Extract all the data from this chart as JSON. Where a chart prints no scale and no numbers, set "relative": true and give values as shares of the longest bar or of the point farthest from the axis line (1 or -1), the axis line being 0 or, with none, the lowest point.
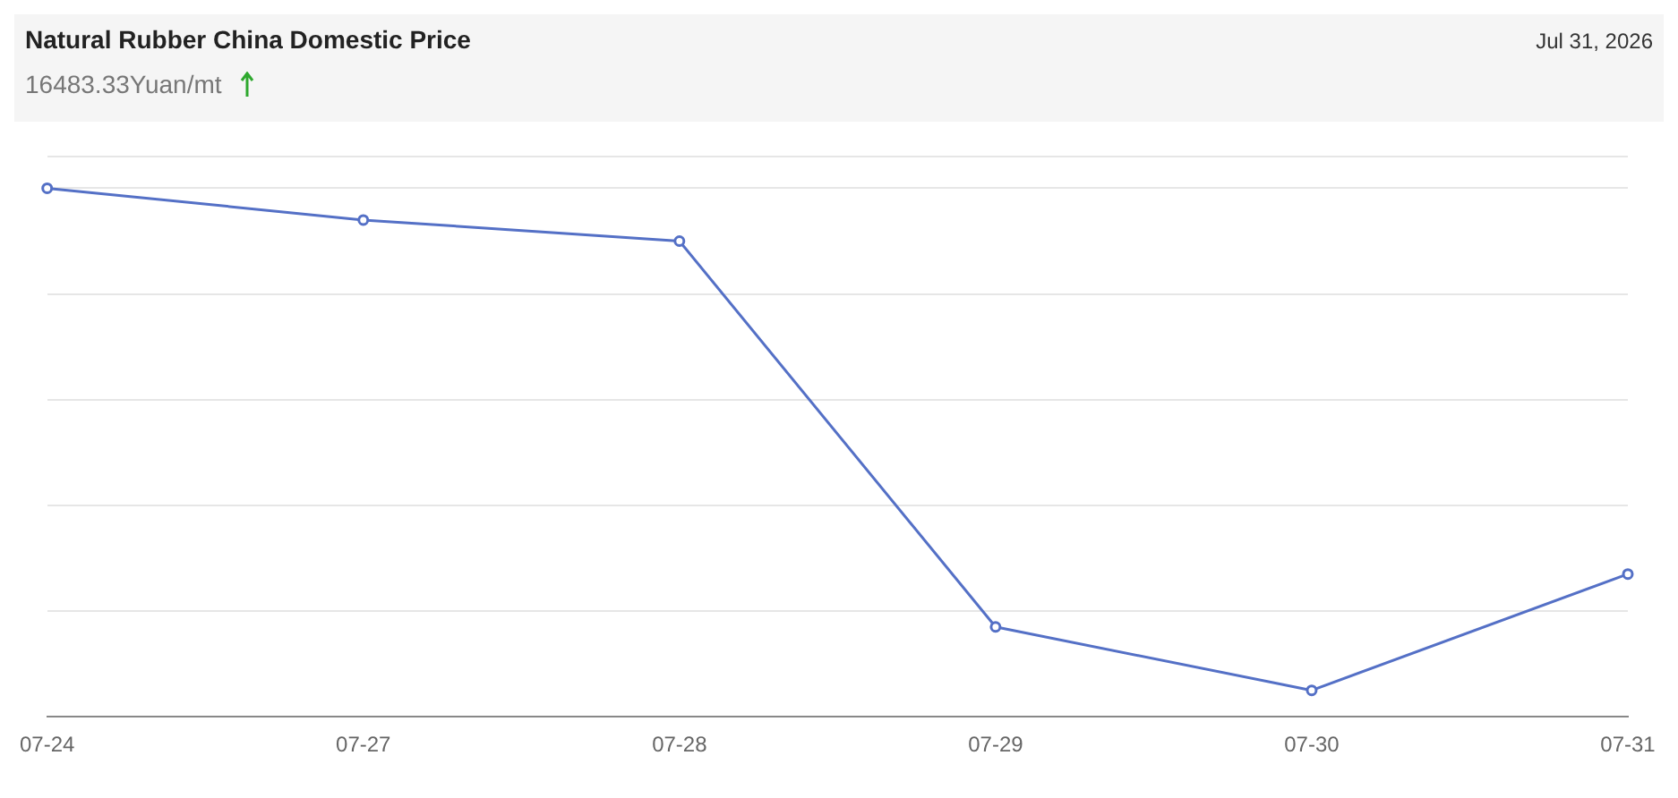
{
  "chart_data": {
    "type": "line",
    "title": "Natural Rubber China Domestic Price",
    "subtitle": "16483.33Yuan/mt",
    "annotations": [
      "Jul 31, 2026"
    ],
    "categories": [
      "07-24",
      "07-27",
      "07-28",
      "07-29",
      "07-30",
      "07-31"
    ],
    "series": [
      {
        "color": "#5470c6",
        "values": [
          1,
          0.94,
          0.9,
          0.17,
          0.05,
          0.27
        ]
      }
    ],
    "relative": true,
    "grid": "y",
    "legend": false,
    "marker": "circle",
    "line_style": "solid"
  }
}
